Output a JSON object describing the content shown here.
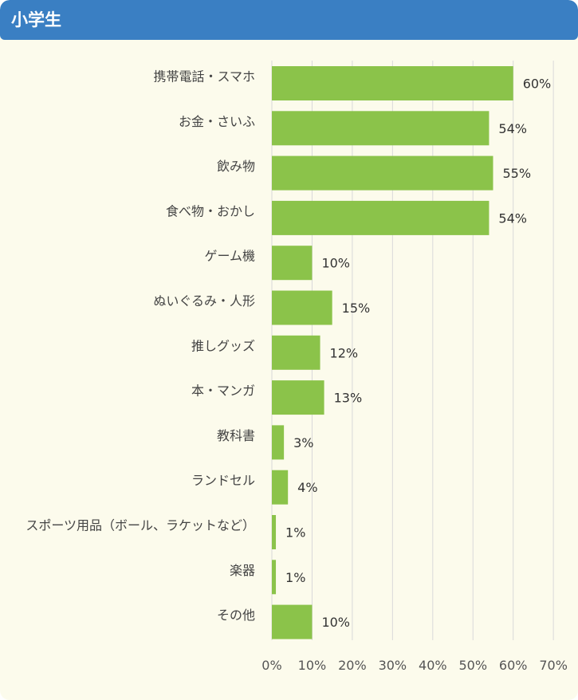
{
  "header": {
    "title": "小学生"
  },
  "colors": {
    "header": "#3a7fc3",
    "background": "#fcfbec",
    "bar": "#8bc34a",
    "grid": "#d9d9d9"
  },
  "chart_data": {
    "type": "bar",
    "orientation": "horizontal",
    "title": "",
    "xlabel": "",
    "ylabel": "",
    "xlim": [
      0,
      70
    ],
    "grid": true,
    "categories": [
      "携帯電話・スマホ",
      "お金・さいふ",
      "飲み物",
      "食べ物・おかし",
      "ゲーム機",
      "ぬいぐるみ・人形",
      "推しグッズ",
      "本・マンガ",
      "教科書",
      "ランドセル",
      "スポーツ用品（ボール、ラケットなど）",
      "楽器",
      "その他"
    ],
    "values": [
      60,
      54,
      55,
      54,
      10,
      15,
      12,
      13,
      3,
      4,
      1,
      1,
      10
    ],
    "value_labels": [
      "60%",
      "54%",
      "55%",
      "54%",
      "10%",
      "15%",
      "12%",
      "13%",
      "3%",
      "4%",
      "1%",
      "1%",
      "10%"
    ],
    "tick_values": [
      0,
      10,
      20,
      30,
      40,
      50,
      60,
      70
    ],
    "tick_labels": [
      "0%",
      "10%",
      "20%",
      "30%",
      "40%",
      "50%",
      "60%",
      "70%"
    ]
  }
}
